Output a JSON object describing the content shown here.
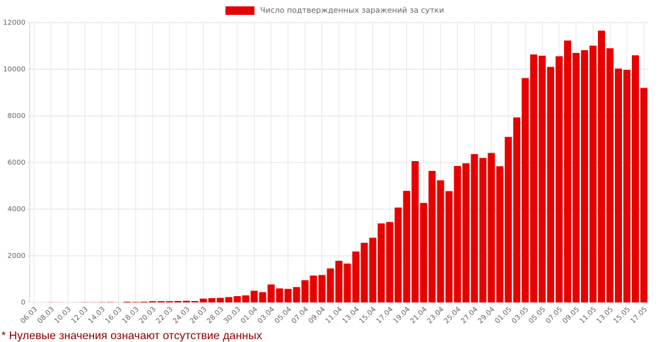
{
  "chart_data": {
    "type": "bar",
    "legend": "Число подтвержденных заражений за сутки",
    "note": "* Нулевые значения означают отсутствие данных",
    "color": "#e60000",
    "categories": [
      "06.03",
      null,
      "08.03",
      null,
      "10.03",
      null,
      "12.03",
      null,
      "14.03",
      null,
      "16.03",
      null,
      "18.03",
      null,
      "20.03",
      null,
      "22.03",
      null,
      "24.03",
      null,
      "26.03",
      null,
      "28.03",
      null,
      "30.03",
      null,
      "01.04",
      null,
      "03.04",
      null,
      "05.04",
      null,
      "07.04",
      null,
      "09.04",
      null,
      "11.04",
      null,
      "13.04",
      null,
      "15.04",
      null,
      "17.04",
      null,
      "19.04",
      null,
      "21.04",
      null,
      "23.04",
      null,
      "25.04",
      null,
      "27.04",
      null,
      "29.04",
      null,
      "01.05",
      null,
      "03.05",
      null,
      "05.05",
      null,
      "07.05",
      null,
      "09.05",
      null,
      "11.05",
      null,
      "13.05",
      null,
      "15.05",
      null,
      "17.05"
    ],
    "values": [
      0,
      0,
      6,
      3,
      0,
      3,
      8,
      6,
      11,
      14,
      4,
      30,
      21,
      33,
      52,
      54,
      53,
      61,
      71,
      57,
      163,
      182,
      196,
      228,
      270,
      302,
      501,
      440,
      771,
      601,
      582,
      658,
      954,
      1154,
      1175,
      1459,
      1786,
      1667,
      2186,
      2558,
      2774,
      3388,
      3448,
      4070,
      4785,
      6060,
      4268,
      5642,
      5236,
      4774,
      5849,
      5966,
      6361,
      6198,
      6411,
      5841,
      7099,
      7933,
      9623,
      10633,
      10581,
      10102,
      10559,
      11231,
      10699,
      10817,
      11012,
      11656,
      10899,
      10028,
      9974,
      10598,
      9200
    ],
    "ylim": [
      0,
      12000
    ],
    "yticks": [
      0,
      2000,
      4000,
      6000,
      8000,
      10000,
      12000
    ],
    "grid": true
  }
}
